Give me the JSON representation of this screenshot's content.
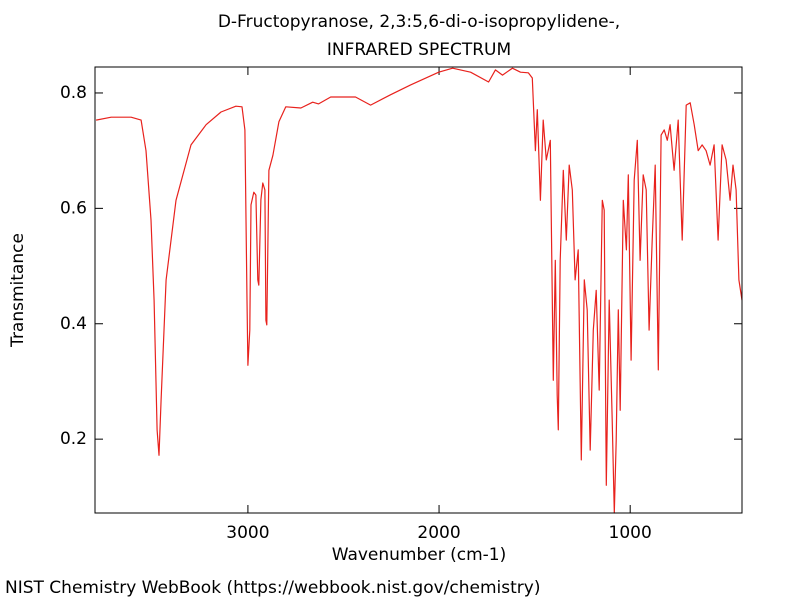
{
  "chart_data": {
    "type": "line",
    "title": "D-Fructopyranose, 2,3:5,6-di-o-isopropylidene-,",
    "subtitle": "INFRARED SPECTRUM",
    "x_label": "Wavenumber (cm-1)",
    "y_label": "Transmitance",
    "source": "NIST Chemistry WebBook (https://webbook.nist.gov/chemistry)",
    "color": "#e8221d",
    "xlim": [
      3800,
      415
    ],
    "ylim": [
      0.072,
      0.845
    ],
    "xticks": [
      3000,
      2000,
      1000
    ],
    "yticks": [
      0.2,
      0.4,
      0.6,
      0.8
    ],
    "x": [
      3794,
      3715,
      3611,
      3559,
      3533,
      3507,
      3491,
      3475,
      3465,
      3454,
      3428,
      3376,
      3298,
      3219,
      3141,
      3063,
      3031,
      3016,
      3005,
      3000,
      2990,
      2984,
      2969,
      2958,
      2948,
      2943,
      2932,
      2922,
      2911,
      2906,
      2901,
      2890,
      2869,
      2838,
      2802,
      2723,
      2661,
      2630,
      2567,
      2437,
      2358,
      2253,
      2149,
      2002,
      1929,
      1835,
      1741,
      1705,
      1668,
      1616,
      1574,
      1533,
      1512,
      1496,
      1486,
      1470,
      1455,
      1439,
      1418,
      1402,
      1392,
      1382,
      1376,
      1366,
      1350,
      1334,
      1319,
      1303,
      1288,
      1272,
      1256,
      1240,
      1225,
      1209,
      1193,
      1178,
      1162,
      1146,
      1136,
      1125,
      1110,
      1094,
      1083,
      1073,
      1062,
      1052,
      1036,
      1020,
      1010,
      995,
      979,
      963,
      948,
      932,
      916,
      901,
      885,
      869,
      853,
      838,
      822,
      806,
      791,
      770,
      749,
      728,
      707,
      686,
      665,
      644,
      624,
      603,
      582,
      561,
      540,
      519,
      498,
      477,
      462,
      446,
      431,
      415
    ],
    "values": [
      0.753,
      0.758,
      0.758,
      0.753,
      0.7,
      0.58,
      0.44,
      0.216,
      0.172,
      0.268,
      0.476,
      0.614,
      0.71,
      0.745,
      0.767,
      0.777,
      0.776,
      0.736,
      0.441,
      0.328,
      0.389,
      0.606,
      0.628,
      0.623,
      0.476,
      0.467,
      0.615,
      0.644,
      0.632,
      0.406,
      0.398,
      0.666,
      0.692,
      0.75,
      0.776,
      0.774,
      0.784,
      0.781,
      0.793,
      0.793,
      0.779,
      0.797,
      0.814,
      0.836,
      0.843,
      0.836,
      0.819,
      0.84,
      0.831,
      0.843,
      0.836,
      0.835,
      0.826,
      0.7,
      0.771,
      0.614,
      0.753,
      0.684,
      0.718,
      0.302,
      0.51,
      0.276,
      0.216,
      0.51,
      0.666,
      0.545,
      0.675,
      0.632,
      0.476,
      0.528,
      0.164,
      0.476,
      0.424,
      0.181,
      0.389,
      0.458,
      0.285,
      0.614,
      0.597,
      0.12,
      0.441,
      0.233,
      0.072,
      0.198,
      0.424,
      0.25,
      0.614,
      0.528,
      0.658,
      0.337,
      0.649,
      0.718,
      0.51,
      0.658,
      0.632,
      0.389,
      0.545,
      0.675,
      0.32,
      0.727,
      0.736,
      0.718,
      0.745,
      0.666,
      0.753,
      0.545,
      0.779,
      0.783,
      0.745,
      0.7,
      0.71,
      0.7,
      0.675,
      0.71,
      0.545,
      0.71,
      0.684,
      0.614,
      0.675,
      0.632,
      0.476,
      0.441
    ]
  }
}
